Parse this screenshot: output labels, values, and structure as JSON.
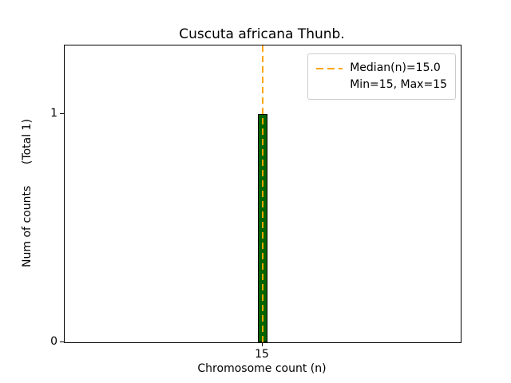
{
  "chart_data": {
    "type": "bar",
    "title": "Cuscuta africana Thunb.",
    "xlabel": "Chromosome count (n)",
    "ylabel": "Num of counts      (Total 1)",
    "categories": [
      15
    ],
    "values": [
      1
    ],
    "xlim": [
      14,
      16
    ],
    "ylim": [
      0,
      1.3
    ],
    "xticks": [
      15
    ],
    "yticks": [
      0,
      1
    ],
    "bar_color": "#006400",
    "bar_edge_color": "#000000",
    "bar_width_units": 0.05,
    "median_line": {
      "x": 15.0,
      "color": "#FFA500",
      "style": "dashed"
    },
    "legend": {
      "position": "upper right",
      "entries": [
        {
          "label": "Median(n)=15.0",
          "has_line": true,
          "line_color": "#FFA500"
        },
        {
          "label": "Min=15, Max=15",
          "has_line": false,
          "line_color": ""
        }
      ]
    },
    "grid": false
  }
}
